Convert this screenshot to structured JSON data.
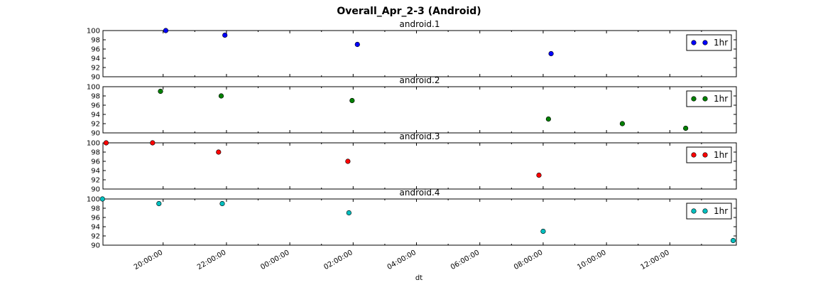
{
  "chart_data": {
    "type": "scatter",
    "title": "Overall_Apr_2-3 (Android)",
    "xlabel": "dt",
    "x_tick_labels": [
      "20:00:00",
      "22:00:00",
      "00:00:00",
      "02:00:00",
      "04:00:00",
      "06:00:00",
      "08:00:00",
      "10:00:00",
      "12:00:00"
    ],
    "x_tick_hours": [
      20,
      22,
      24,
      26,
      28,
      30,
      32,
      34,
      36
    ],
    "xlim_hours": [
      18.1,
      38.1
    ],
    "ylim": [
      90,
      100
    ],
    "y_ticks": [
      90,
      92,
      94,
      96,
      98,
      100
    ],
    "grid": false,
    "legend_position": "upper right",
    "panels": [
      {
        "title": "android.1",
        "series": [
          {
            "name": "1hr",
            "color": "#0000ff",
            "points": [
              {
                "x": "20:05",
                "y": 100
              },
              {
                "x": "21:57",
                "y": 99
              },
              {
                "x": "02:08",
                "y": 97
              },
              {
                "x": "08:15",
                "y": 95
              }
            ]
          }
        ]
      },
      {
        "title": "android.2",
        "series": [
          {
            "name": "1hr",
            "color": "#008000",
            "points": [
              {
                "x": "19:55",
                "y": 99
              },
              {
                "x": "21:50",
                "y": 98
              },
              {
                "x": "01:58",
                "y": 97
              },
              {
                "x": "08:10",
                "y": 93
              },
              {
                "x": "10:30",
                "y": 92
              },
              {
                "x": "12:30",
                "y": 91
              }
            ]
          }
        ]
      },
      {
        "title": "android.3",
        "series": [
          {
            "name": "1hr",
            "color": "#ff0000",
            "points": [
              {
                "x": "18:12",
                "y": 100
              },
              {
                "x": "19:40",
                "y": 100
              },
              {
                "x": "21:45",
                "y": 98
              },
              {
                "x": "01:50",
                "y": 96
              },
              {
                "x": "07:52",
                "y": 93
              }
            ]
          }
        ]
      },
      {
        "title": "android.4",
        "series": [
          {
            "name": "1hr",
            "color": "#00bfbf",
            "points": [
              {
                "x": "18:05",
                "y": 100
              },
              {
                "x": "19:52",
                "y": 99
              },
              {
                "x": "21:52",
                "y": 99
              },
              {
                "x": "01:52",
                "y": 97
              },
              {
                "x": "08:00",
                "y": 93
              },
              {
                "x": "14:00",
                "y": 91
              }
            ]
          }
        ]
      }
    ]
  }
}
